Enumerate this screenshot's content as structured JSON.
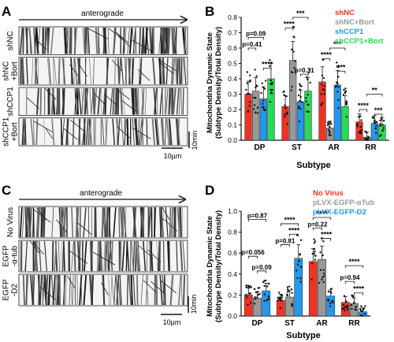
{
  "panels": [
    {
      "letter": "A",
      "direction_label": "anterograde",
      "strips": [
        {
          "label_lines": [
            "shNC"
          ],
          "density": 0.8
        },
        {
          "label_lines": [
            "shNC",
            "+Bort"
          ],
          "density": 0.45
        },
        {
          "label_lines": [
            "shCCP1"
          ],
          "density": 0.7
        },
        {
          "label_lines": [
            "shCCP1",
            "+Bort"
          ],
          "density": 0.5
        }
      ],
      "time_scale_label": "10min",
      "space_scale_label": "10µm"
    },
    {
      "letter": "C",
      "direction_label": "anterograde",
      "strips": [
        {
          "label_lines": [
            "No Virus"
          ],
          "density": 0.75
        },
        {
          "label_lines": [
            "EGFP",
            "-α-tub"
          ],
          "density": 0.65
        },
        {
          "label_lines": [
            "EGFP",
            "-D2"
          ],
          "density": 0.55
        }
      ],
      "time_scale_label": "10min",
      "space_scale_label": "10µm"
    }
  ],
  "chart_data": [
    {
      "type": "bar",
      "panel_letter": "B",
      "ylabel_lines": [
        "Mitochondria Dynamic State",
        "(Subtype Density/Total Density)"
      ],
      "xlabel": "Subtype",
      "categories": [
        "DP",
        "ST",
        "AR",
        "RR"
      ],
      "ylim": [
        0,
        0.8
      ],
      "yticks": [
        "0.0",
        "0.1",
        "0.2",
        "0.3",
        "0.4",
        "0.5",
        "0.6",
        "0.7",
        "0.8"
      ],
      "series": [
        {
          "name": "shNC",
          "color": "#ee3322",
          "values": [
            0.3,
            0.22,
            0.38,
            0.12
          ]
        },
        {
          "name": "shNC+Bort",
          "color": "#999999",
          "values": [
            0.32,
            0.52,
            0.08,
            0.02
          ]
        },
        {
          "name": "shCCP1",
          "color": "#2299ee",
          "values": [
            0.27,
            0.25,
            0.36,
            0.11
          ]
        },
        {
          "name": "shCCP1+Bort",
          "color": "#22dd55",
          "values": [
            0.4,
            0.32,
            0.22,
            0.1
          ]
        }
      ],
      "comparisons": [
        {
          "category": 0,
          "from": 0,
          "to": 1,
          "label": "p=0.41",
          "y": 0.6
        },
        {
          "category": 0,
          "from": 0,
          "to": 2,
          "label": "p=0.09",
          "y": 0.67
        },
        {
          "category": 0,
          "from": 2,
          "to": 3,
          "label": "****",
          "y": 0.47
        },
        {
          "category": 1,
          "from": 0,
          "to": 1,
          "label": "****",
          "y": 0.73
        },
        {
          "category": 1,
          "from": 1,
          "to": 3,
          "label": "***",
          "y": 0.8
        },
        {
          "category": 1,
          "from": 2,
          "to": 3,
          "label": "p=0.31",
          "y": 0.43
        },
        {
          "category": 2,
          "from": 0,
          "to": 1,
          "label": "****",
          "y": 0.53
        },
        {
          "category": 2,
          "from": 1,
          "to": 3,
          "label": "***",
          "y": 0.6
        },
        {
          "category": 2,
          "from": 2,
          "to": 3,
          "label": "***",
          "y": 0.45
        },
        {
          "category": 3,
          "from": 0,
          "to": 1,
          "label": "****",
          "y": 0.2
        },
        {
          "category": 3,
          "from": 1,
          "to": 3,
          "label": "**",
          "y": 0.3
        },
        {
          "category": 3,
          "from": 2,
          "to": 3,
          "label": "***",
          "y": 0.17
        }
      ]
    },
    {
      "type": "bar",
      "panel_letter": "D",
      "ylabel_lines": [
        "Mitochondria Dynamic State",
        "(Subtype Density/Total Density)"
      ],
      "xlabel": "Subtype",
      "categories": [
        "DP",
        "ST",
        "AR",
        "RR"
      ],
      "ylim": [
        0,
        1.0
      ],
      "yticks": [
        "0.0",
        "0.2",
        "0.4",
        "0.6",
        "0.8",
        "1.0"
      ],
      "series": [
        {
          "name": "No Virus",
          "color": "#ee3322",
          "values": [
            0.2,
            0.15,
            0.52,
            0.13
          ]
        },
        {
          "name": "pLVX-EGFP-αTub",
          "color": "#999999",
          "values": [
            0.17,
            0.18,
            0.54,
            0.12
          ]
        },
        {
          "name": "pLVX-EGFP-D2",
          "color": "#2299ee",
          "values": [
            0.24,
            0.55,
            0.19,
            0.04
          ]
        }
      ],
      "comparisons": [
        {
          "category": 0,
          "from": 0,
          "to": 1,
          "label": "p=0.056",
          "y": 0.57
        },
        {
          "category": 0,
          "from": 0,
          "to": 2,
          "label": "p=0.87",
          "y": 0.92
        },
        {
          "category": 0,
          "from": 1,
          "to": 2,
          "label": "p=0.09",
          "y": 0.43
        },
        {
          "category": 1,
          "from": 0,
          "to": 1,
          "label": "p=0.81",
          "y": 0.68
        },
        {
          "category": 1,
          "from": 0,
          "to": 2,
          "label": "****",
          "y": 0.88
        },
        {
          "category": 1,
          "from": 1,
          "to": 2,
          "label": "****",
          "y": 0.78
        },
        {
          "category": 2,
          "from": 0,
          "to": 1,
          "label": "p=0.22",
          "y": 0.84
        },
        {
          "category": 2,
          "from": 0,
          "to": 2,
          "label": "****",
          "y": 0.94
        },
        {
          "category": 2,
          "from": 1,
          "to": 2,
          "label": "****",
          "y": 0.74
        },
        {
          "category": 3,
          "from": 0,
          "to": 1,
          "label": "p=0.94",
          "y": 0.33
        },
        {
          "category": 3,
          "from": 0,
          "to": 2,
          "label": "****",
          "y": 0.48
        },
        {
          "category": 3,
          "from": 1,
          "to": 2,
          "label": "****",
          "y": 0.22
        }
      ]
    }
  ]
}
